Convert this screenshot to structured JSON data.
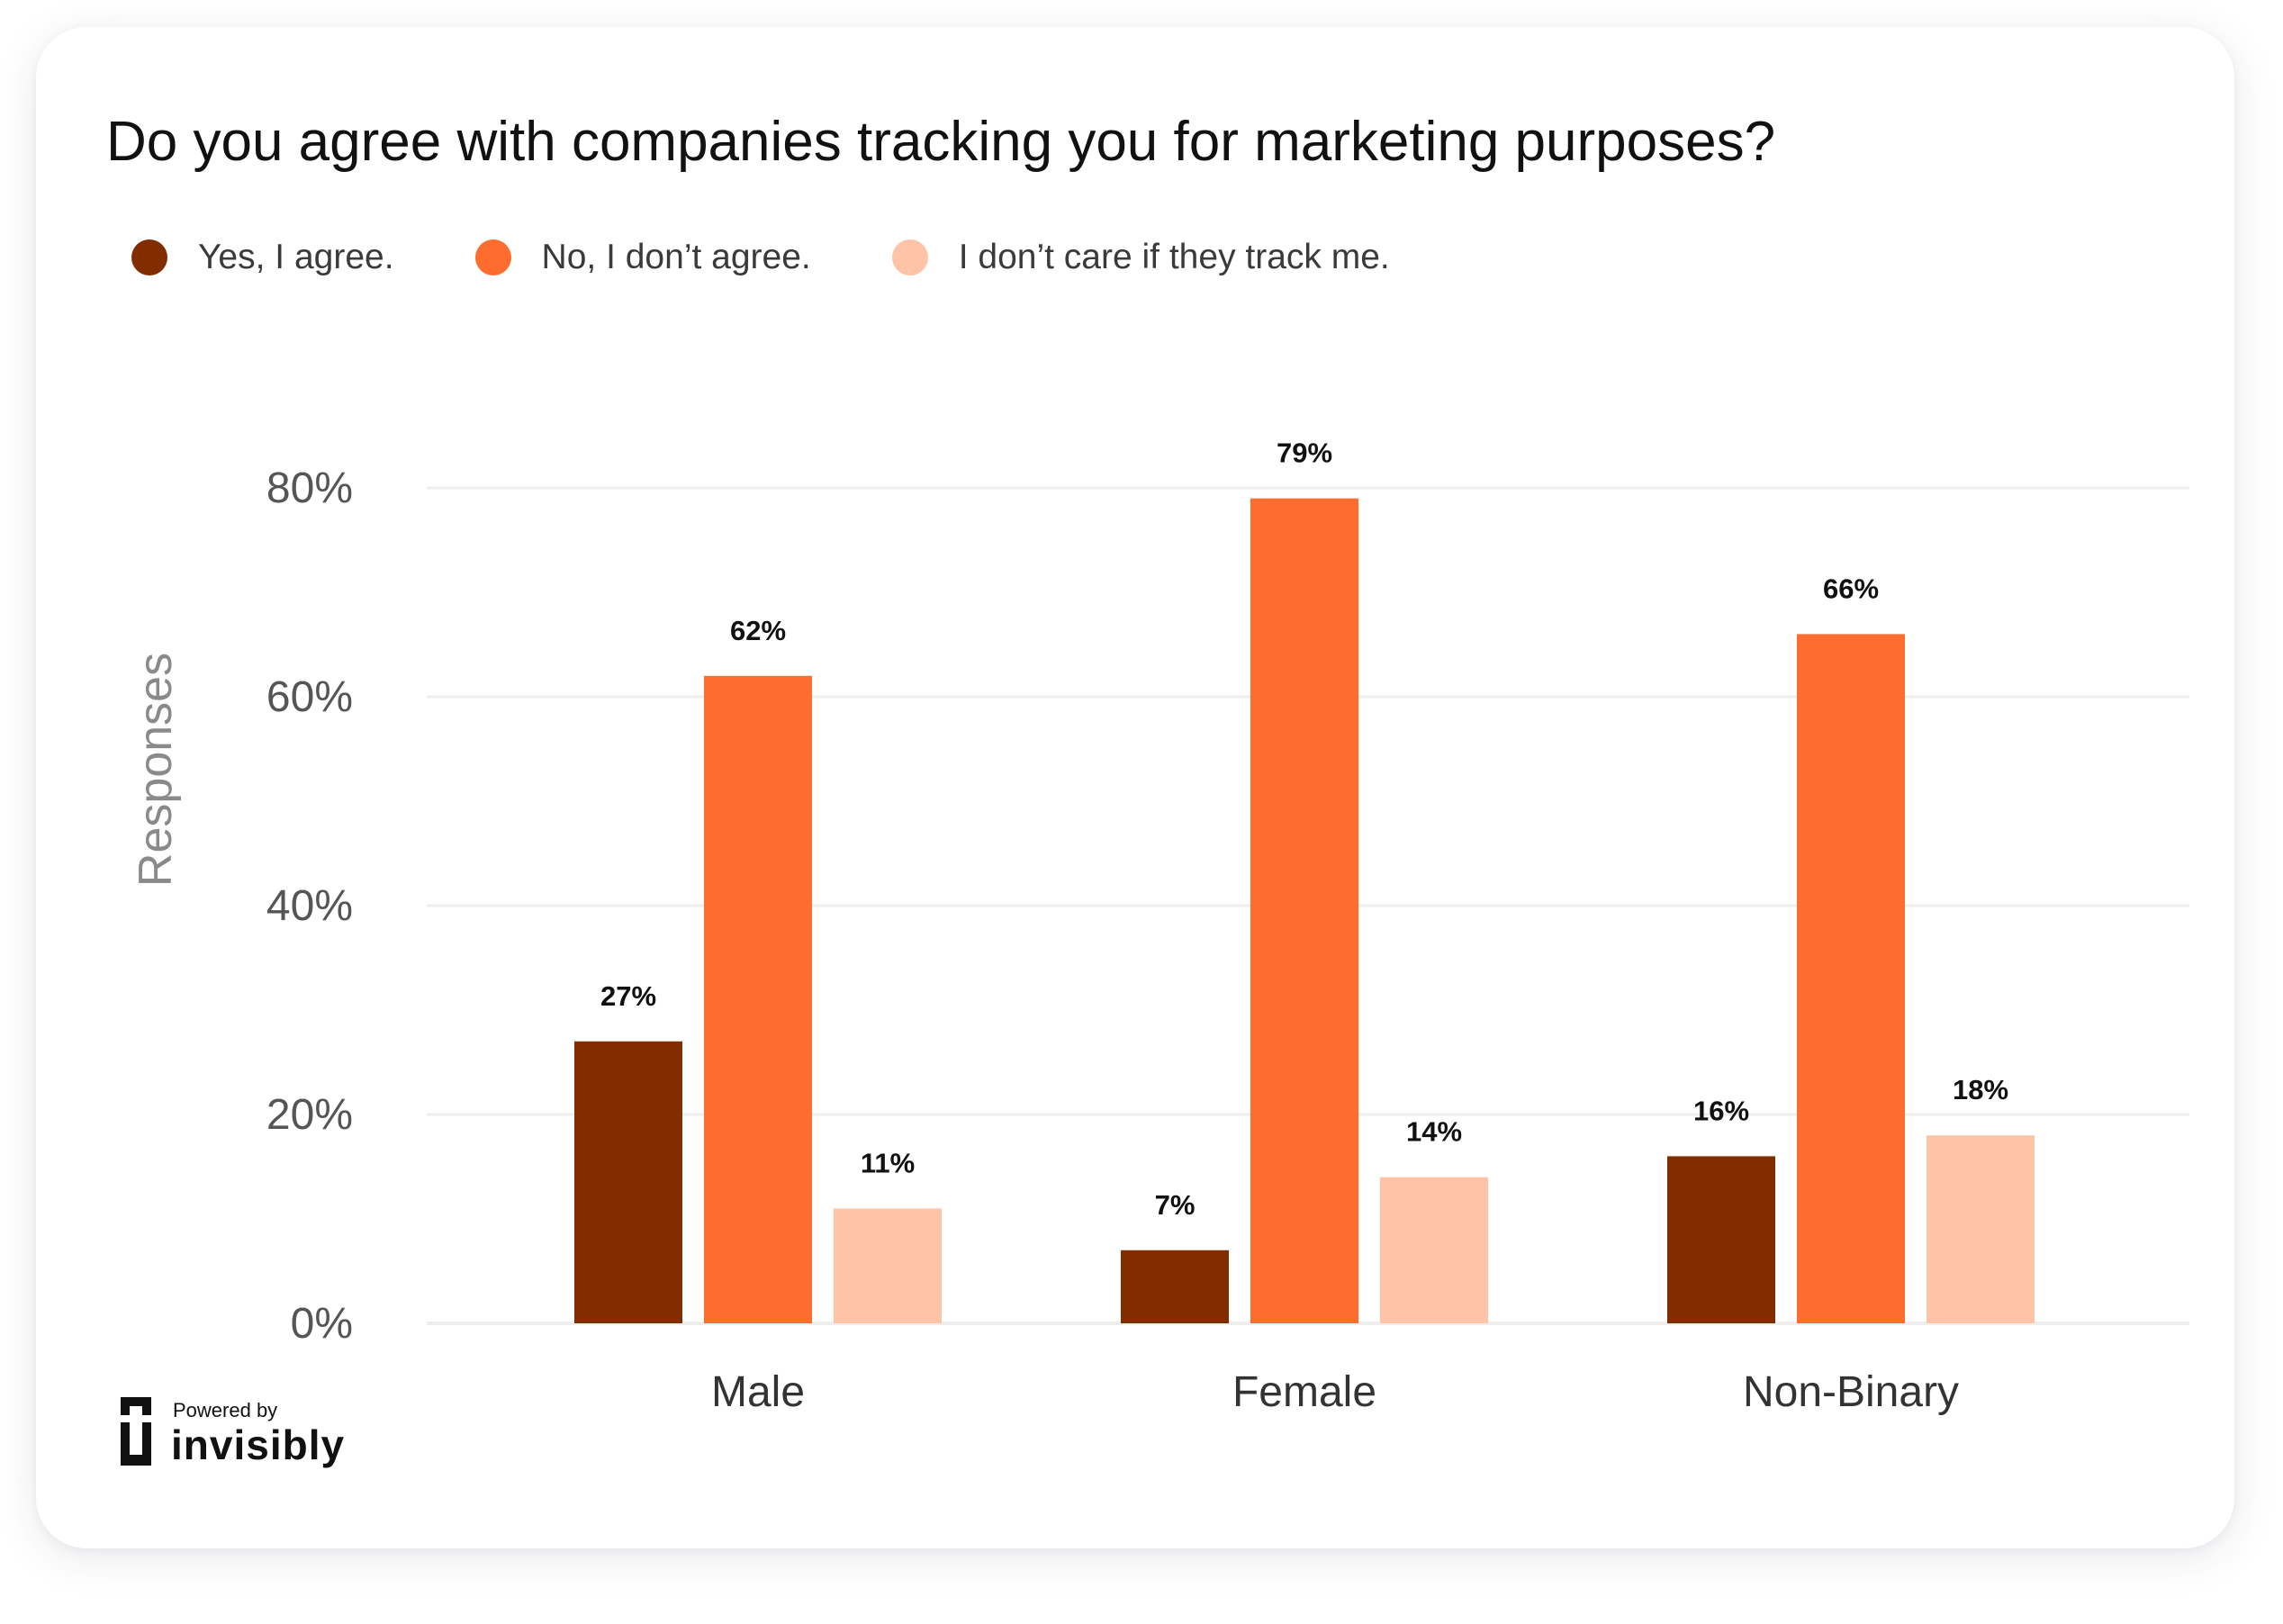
{
  "colors": {
    "yes": "#822d00",
    "no": "#ff6d2e",
    "dont_care": "#ffc4a8",
    "grid": "#eeeeee",
    "tick_text": "#555555",
    "axis_title": "#8a8a8a",
    "category_text": "#333333",
    "value_label": "#111111"
  },
  "chart_data": {
    "type": "bar",
    "title": "Do you agree with companies tracking you for marketing purposes?",
    "xlabel": "",
    "ylabel": "Responses",
    "ylim": [
      0,
      80
    ],
    "yticks": [
      0,
      20,
      40,
      60,
      80
    ],
    "ytick_labels": [
      "0%",
      "20%",
      "40%",
      "60%",
      "80%"
    ],
    "grid": true,
    "legend_position": "top-left",
    "categories": [
      "Male",
      "Female",
      "Non-Binary"
    ],
    "series": [
      {
        "name": "Yes, I agree.",
        "color": "#822d00",
        "values": [
          27,
          7,
          16
        ],
        "labels": [
          "27%",
          "7%",
          "16%"
        ]
      },
      {
        "name": "No, I don’t agree.",
        "color": "#ff6d2e",
        "values": [
          62,
          79,
          66
        ],
        "labels": [
          "62%",
          "79%",
          "66%"
        ]
      },
      {
        "name": "I don’t care if they track me.",
        "color": "#ffc4a8",
        "values": [
          11,
          14,
          18
        ],
        "labels": [
          "11%",
          "14%",
          "18%"
        ]
      }
    ]
  },
  "branding": {
    "powered_by": "Powered by",
    "name": "invisibly",
    "icon": "invisibly-logo-icon"
  }
}
